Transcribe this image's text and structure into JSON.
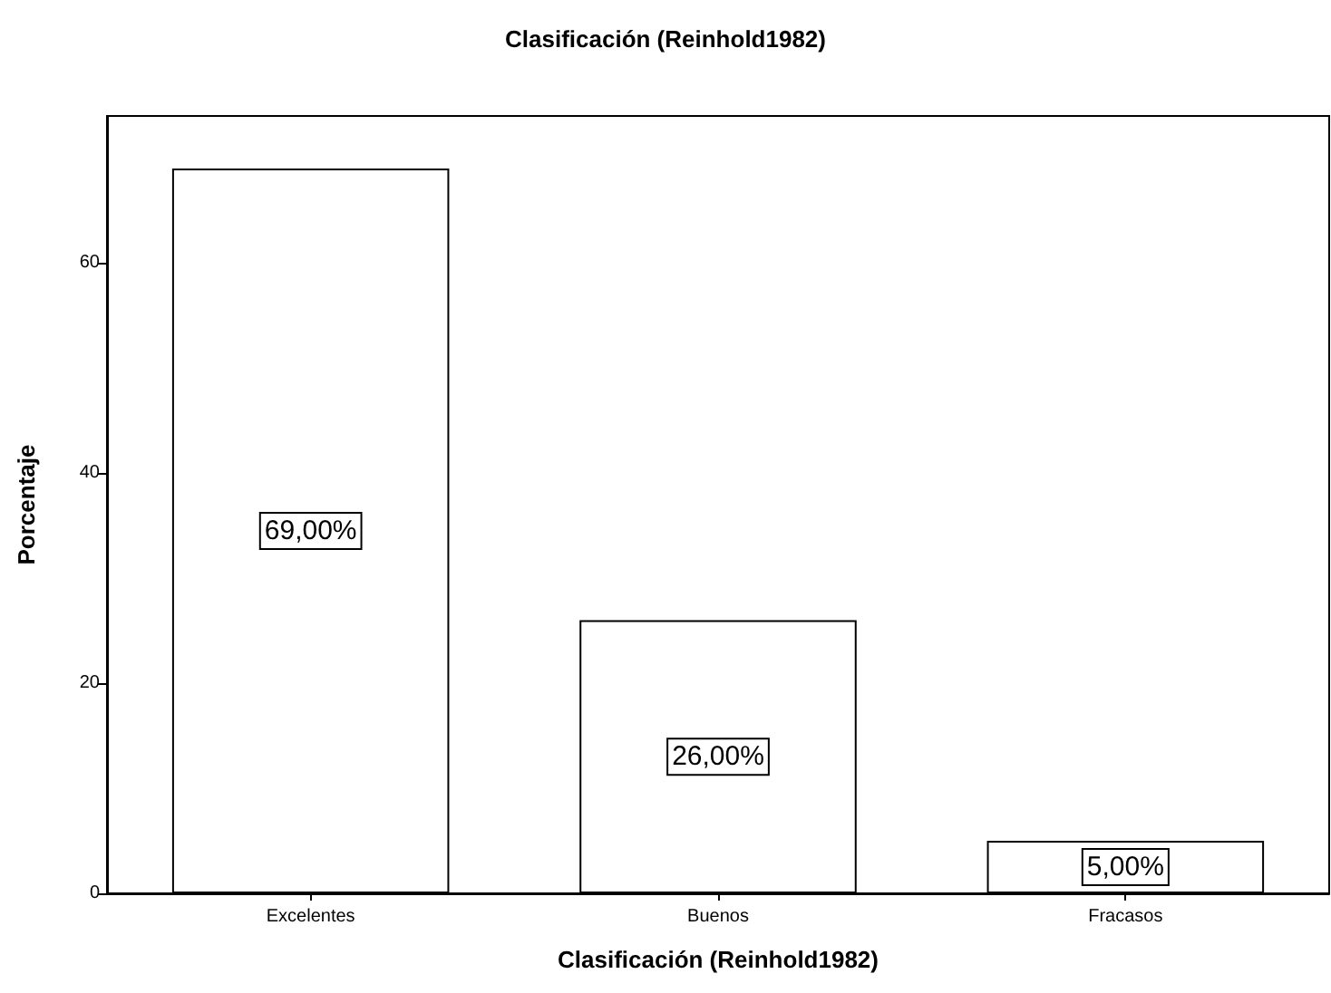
{
  "chart_data": {
    "type": "bar",
    "title": "Clasificación (Reinhold1982)",
    "xlabel": "Clasificación (Reinhold1982)",
    "ylabel": "Porcentaje",
    "categories": [
      "Excelentes",
      "Buenos",
      "Fracasos"
    ],
    "values": [
      69,
      26,
      5
    ],
    "color": "#ffffff",
    "value_labels": [
      "69,00%",
      "26,00%",
      "5,00%"
    ],
    "ylim": [
      0,
      74
    ],
    "yticks": [
      0,
      20,
      40,
      60
    ],
    "grid": false
  }
}
